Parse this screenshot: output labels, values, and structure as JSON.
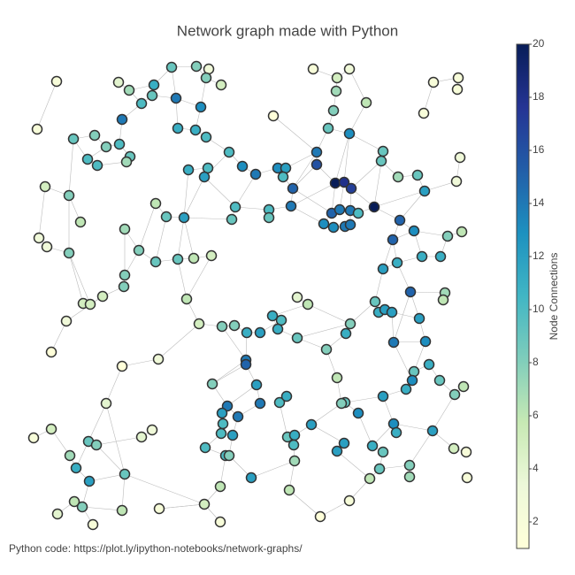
{
  "chart_data": {
    "type": "network",
    "title": "Network graph made with Python",
    "annotation": "Python code:  https://plot.ly/ipython-notebooks/network-graphs/",
    "colorbar_title": "Node Connections",
    "clim": [
      1,
      20
    ],
    "cticks": [
      2,
      4,
      6,
      8,
      10,
      12,
      14,
      16,
      18,
      20
    ],
    "colorscale": [
      "#ffffd9",
      "#edf8d9",
      "#c7e9b4",
      "#7fcdbb",
      "#41b6c4",
      "#1d91c0",
      "#225ea8",
      "#253494",
      "#081d58"
    ],
    "node_line_color": "#333333",
    "edge_color": "#bbbbbb",
    "xlim": [
      0,
      530
    ],
    "ylim": [
      0,
      540
    ],
    "x": [
      44,
      22,
      114,
      126,
      154,
      174,
      202,
      216,
      213,
      230,
      152,
      140,
      179,
      207,
      118,
      63,
      87,
      115,
      100,
      127,
      79,
      90,
      123,
      181,
      201,
      213,
      193,
      215,
      211,
      239,
      254,
      269,
      294,
      303,
      300,
      246,
      242,
      284,
      284,
      311,
      309,
      31,
      58,
      71,
      24,
      33,
      58,
      156,
      168,
      188,
      121,
      137,
      156,
      181,
      199,
      219,
      121,
      120,
      96,
      74,
      82,
      55,
      191,
      38,
      118,
      159,
      334,
      375,
      361,
      360,
      394,
      357,
      289,
      351,
      375,
      338,
      338,
      359,
      369,
      377,
      403,
      355,
      364,
      376,
      385,
      346,
      357,
      370,
      376,
      413,
      411,
      430,
      452,
      460,
      432,
      424,
      448,
      470,
      498,
      497,
      459,
      500,
      496,
      486,
      502,
      413,
      429,
      457,
      478,
      444,
      483,
      481,
      404,
      408,
      415,
      423,
      454,
      425,
      461,
      316,
      328,
      288,
      298,
      294,
      274,
      231,
      245,
      259,
      205,
      316,
      376,
      371,
      349,
      258,
      258,
      361,
      220,
      270,
      448,
      465,
      446,
      477,
      504,
      494,
      439,
      413,
      370,
      366,
      385,
      425,
      428,
      469,
      237,
      231,
      249,
      274,
      296,
      304,
      232,
      230,
      243,
      332,
      305,
      313,
      312,
      313,
      369,
      361,
      401,
      413,
      443,
      409,
      493,
      507,
      508,
      398,
      443,
      212,
      235,
      239,
      264,
      229,
      307,
      211,
      229,
      342,
      375,
      160,
      100,
      18,
      38,
      80,
      89,
      140,
      152,
      59,
      66,
      81,
      121,
      64,
      73,
      45,
      85,
      118
    ],
    "y": [
      508,
      454,
      507,
      498,
      504,
      524,
      525,
      522,
      512,
      504,
      492,
      483,
      489,
      479,
      465,
      443,
      447,
      437,
      434,
      423,
      420,
      413,
      417,
      455,
      453,
      445,
      408,
      410,
      400,
      428,
      412,
      403,
      410,
      410,
      400,
      366,
      352,
      363,
      354,
      387,
      367,
      389,
      379,
      349,
      331,
      321,
      314,
      370,
      355,
      354,
      341,
      317,
      304,
      307,
      308,
      311,
      289,
      276,
      265,
      257,
      256,
      237,
      262,
      202,
      186,
      194,
      522,
      522,
      512,
      497,
      484,
      475,
      469,
      455,
      449,
      428,
      414,
      393,
      394,
      387,
      366,
      359,
      363,
      362,
      359,
      347,
      343,
      344,
      346,
      429,
      418,
      400,
      402,
      384,
      351,
      329,
      339,
      507,
      512,
      499,
      472,
      422,
      395,
      333,
      338,
      296,
      303,
      310,
      310,
      270,
      269,
      261,
      259,
      247,
      250,
      247,
      240,
      213,
      214,
      264,
      256,
      243,
      238,
      228,
      224,
      231,
      232,
      224,
      234,
      218,
      234,
      223,
      205,
      193,
      188,
      173,
      166,
      165,
      180,
      188,
      170,
      170,
      163,
      154,
      160,
      152,
      145,
      144,
      133,
      121,
      111,
      113,
      141,
      133,
      129,
      144,
      145,
      152,
      121,
      110,
      108,
      120,
      106,
      108,
      97,
      79,
      99,
      90,
      96,
      89,
      74,
      70,
      93,
      89,
      60,
      59,
      61,
      94,
      85,
      85,
      60,
      50,
      46,
      30,
      10,
      16,
      34,
      25,
      144,
      105,
      115,
      101,
      97,
      106,
      114,
      85,
      71,
      56,
      64,
      33,
      27,
      19,
      7,
      23
    ],
    "values": [
      2,
      2,
      4,
      7,
      11,
      9,
      8,
      3,
      8,
      5,
      9,
      10,
      14,
      13,
      14,
      9,
      8,
      10,
      8,
      9,
      10,
      10,
      7,
      11,
      11,
      10,
      11,
      10,
      12,
      10,
      13,
      14,
      13,
      12,
      10,
      10,
      9,
      10,
      9,
      15,
      14,
      5,
      8,
      6,
      3,
      3,
      8,
      6,
      9,
      12,
      7,
      8,
      9,
      9,
      6,
      5,
      8,
      8,
      5,
      5,
      5,
      3,
      6,
      1,
      1,
      3,
      2,
      3,
      5,
      7,
      6,
      8,
      1,
      9,
      13,
      14,
      16,
      20,
      18,
      17,
      20,
      15,
      14,
      14,
      10,
      13,
      13,
      14,
      14,
      9,
      9,
      7,
      9,
      12,
      15,
      15,
      13,
      2,
      2,
      2,
      2,
      3,
      3,
      8,
      6,
      12,
      11,
      11,
      11,
      15,
      7,
      6,
      9,
      11,
      12,
      12,
      12,
      14,
      13,
      4,
      6,
      11,
      10,
      11,
      12,
      8,
      8,
      11,
      5,
      9,
      8,
      11,
      8,
      14,
      15,
      6,
      8,
      12,
      9,
      11,
      13,
      9,
      6,
      8,
      11,
      12,
      9,
      8,
      13,
      13,
      11,
      12,
      14,
      12,
      14,
      14,
      10,
      11,
      10,
      10,
      12,
      12,
      9,
      11,
      10,
      7,
      12,
      12,
      11,
      9,
      8,
      9,
      5,
      2,
      2,
      6,
      7,
      10,
      10,
      8,
      12,
      6,
      6,
      5,
      2,
      1,
      2,
      2,
      4,
      2,
      5,
      9,
      8,
      4,
      3,
      7,
      11,
      12,
      9,
      6,
      8,
      4,
      2,
      6
    ],
    "edges": [
      [
        0,
        1
      ],
      [
        2,
        3
      ],
      [
        3,
        4
      ],
      [
        4,
        5
      ],
      [
        5,
        6
      ],
      [
        6,
        7
      ],
      [
        6,
        8
      ],
      [
        8,
        9
      ],
      [
        5,
        12
      ],
      [
        4,
        10
      ],
      [
        10,
        11
      ],
      [
        11,
        14
      ],
      [
        12,
        13
      ],
      [
        8,
        13
      ],
      [
        3,
        11
      ],
      [
        13,
        24
      ],
      [
        23,
        24
      ],
      [
        24,
        25
      ],
      [
        12,
        23
      ],
      [
        14,
        17
      ],
      [
        15,
        16
      ],
      [
        16,
        18
      ],
      [
        17,
        18
      ],
      [
        17,
        19
      ],
      [
        18,
        20
      ],
      [
        20,
        21
      ],
      [
        19,
        22
      ],
      [
        21,
        22
      ],
      [
        15,
        20
      ],
      [
        15,
        42
      ],
      [
        41,
        42
      ],
      [
        42,
        43
      ],
      [
        41,
        44
      ],
      [
        44,
        45
      ],
      [
        45,
        46
      ],
      [
        42,
        46
      ],
      [
        46,
        59
      ],
      [
        46,
        60
      ],
      [
        59,
        60
      ],
      [
        60,
        58
      ],
      [
        58,
        57
      ],
      [
        57,
        56
      ],
      [
        56,
        50
      ],
      [
        50,
        51
      ],
      [
        51,
        52
      ],
      [
        52,
        53
      ],
      [
        53,
        54
      ],
      [
        54,
        55
      ],
      [
        48,
        49
      ],
      [
        47,
        48
      ],
      [
        48,
        52
      ],
      [
        49,
        53
      ],
      [
        47,
        51
      ],
      [
        49,
        54
      ],
      [
        53,
        62
      ],
      [
        61,
        58
      ],
      [
        26,
        27
      ],
      [
        27,
        28
      ],
      [
        28,
        29
      ],
      [
        29,
        30
      ],
      [
        30,
        31
      ],
      [
        31,
        32
      ],
      [
        32,
        33
      ],
      [
        33,
        34
      ],
      [
        34,
        39
      ],
      [
        39,
        40
      ],
      [
        31,
        35
      ],
      [
        35,
        36
      ],
      [
        37,
        38
      ],
      [
        35,
        37
      ],
      [
        28,
        49
      ],
      [
        26,
        49
      ],
      [
        36,
        49
      ],
      [
        25,
        29
      ],
      [
        28,
        35
      ],
      [
        40,
        37
      ],
      [
        62,
        128
      ],
      [
        63,
        61
      ],
      [
        64,
        65
      ],
      [
        64,
        188
      ],
      [
        65,
        128
      ],
      [
        66,
        68
      ],
      [
        67,
        68
      ],
      [
        68,
        69
      ],
      [
        67,
        70
      ],
      [
        69,
        71
      ],
      [
        71,
        73
      ],
      [
        70,
        74
      ],
      [
        73,
        75
      ],
      [
        73,
        74
      ],
      [
        74,
        77
      ],
      [
        74,
        78
      ],
      [
        75,
        76
      ],
      [
        76,
        77
      ],
      [
        77,
        78
      ],
      [
        78,
        79
      ],
      [
        77,
        81
      ],
      [
        78,
        82
      ],
      [
        79,
        83
      ],
      [
        81,
        82
      ],
      [
        82,
        83
      ],
      [
        83,
        84
      ],
      [
        81,
        85
      ],
      [
        85,
        86
      ],
      [
        86,
        87
      ],
      [
        87,
        88
      ],
      [
        83,
        88
      ],
      [
        80,
        84
      ],
      [
        80,
        79
      ],
      [
        80,
        94
      ],
      [
        80,
        93
      ],
      [
        77,
        40
      ],
      [
        76,
        39
      ],
      [
        75,
        39
      ],
      [
        72,
        75
      ],
      [
        33,
        75
      ],
      [
        40,
        85
      ],
      [
        39,
        81
      ],
      [
        74,
        89
      ],
      [
        89,
        90
      ],
      [
        90,
        91
      ],
      [
        91,
        92
      ],
      [
        92,
        93
      ],
      [
        90,
        79
      ],
      [
        89,
        80
      ],
      [
        93,
        94
      ],
      [
        94,
        95
      ],
      [
        94,
        96
      ],
      [
        95,
        96
      ],
      [
        96,
        103
      ],
      [
        103,
        104
      ],
      [
        93,
        102
      ],
      [
        101,
        102
      ],
      [
        97,
        98
      ],
      [
        98,
        99
      ],
      [
        97,
        100
      ],
      [
        95,
        105
      ],
      [
        95,
        106
      ],
      [
        105,
        106
      ],
      [
        106,
        107
      ],
      [
        107,
        108
      ],
      [
        107,
        96
      ],
      [
        108,
        103
      ],
      [
        109,
        106
      ],
      [
        109,
        110
      ],
      [
        110,
        111
      ],
      [
        105,
        112
      ],
      [
        112,
        113
      ],
      [
        113,
        114
      ],
      [
        114,
        115
      ],
      [
        115,
        116
      ],
      [
        109,
        116
      ],
      [
        115,
        117
      ],
      [
        116,
        118
      ],
      [
        117,
        118
      ],
      [
        109,
        117
      ],
      [
        112,
        130
      ],
      [
        130,
        131
      ],
      [
        119,
        120
      ],
      [
        120,
        121
      ],
      [
        121,
        122
      ],
      [
        121,
        123
      ],
      [
        122,
        124
      ],
      [
        124,
        127
      ],
      [
        125,
        126
      ],
      [
        126,
        127
      ],
      [
        125,
        128
      ],
      [
        123,
        129
      ],
      [
        129,
        132
      ],
      [
        131,
        132
      ],
      [
        127,
        133
      ],
      [
        133,
        134
      ],
      [
        134,
        136
      ],
      [
        134,
        137
      ],
      [
        133,
        125
      ],
      [
        132,
        135
      ],
      [
        135,
        147
      ],
      [
        146,
        147
      ],
      [
        146,
        148
      ],
      [
        147,
        161
      ],
      [
        145,
        146
      ],
      [
        145,
        144
      ],
      [
        144,
        140
      ],
      [
        138,
        140
      ],
      [
        138,
        139
      ],
      [
        139,
        141
      ],
      [
        141,
        143
      ],
      [
        142,
        143
      ],
      [
        118,
        138
      ],
      [
        117,
        140
      ],
      [
        145,
        149
      ],
      [
        149,
        150
      ],
      [
        149,
        151
      ],
      [
        143,
        151
      ],
      [
        148,
        168
      ],
      [
        168,
        169
      ],
      [
        149,
        168
      ],
      [
        169,
        171
      ],
      [
        170,
        171
      ],
      [
        151,
        170
      ],
      [
        171,
        175
      ],
      [
        175,
        186
      ],
      [
        170,
        176
      ],
      [
        172,
        173
      ],
      [
        172,
        151
      ],
      [
        166,
        167
      ],
      [
        161,
        166
      ],
      [
        161,
        163
      ],
      [
        162,
        163
      ],
      [
        162,
        164
      ],
      [
        164,
        165
      ],
      [
        157,
        156
      ],
      [
        156,
        162
      ],
      [
        137,
        155
      ],
      [
        155,
        154
      ],
      [
        152,
        153
      ],
      [
        152,
        154
      ],
      [
        153,
        158
      ],
      [
        158,
        159
      ],
      [
        159,
        160
      ],
      [
        154,
        160
      ],
      [
        152,
        137
      ],
      [
        136,
        152
      ],
      [
        133,
        136
      ],
      [
        159,
        177
      ],
      [
        177,
        178
      ],
      [
        178,
        179
      ],
      [
        179,
        160
      ],
      [
        179,
        180
      ],
      [
        180,
        165
      ],
      [
        178,
        181
      ],
      [
        181,
        183
      ],
      [
        183,
        184
      ],
      [
        183,
        187
      ],
      [
        165,
        182
      ],
      [
        167,
        175
      ],
      [
        182,
        185
      ],
      [
        185,
        186
      ],
      [
        188,
        191
      ],
      [
        189,
        190
      ],
      [
        190,
        195
      ],
      [
        191,
        192
      ],
      [
        191,
        196
      ],
      [
        192,
        198
      ],
      [
        193,
        194
      ],
      [
        192,
        193
      ],
      [
        195,
        196
      ],
      [
        196,
        197
      ],
      [
        197,
        200
      ],
      [
        199,
        200
      ],
      [
        199,
        201
      ],
      [
        200,
        202
      ],
      [
        200,
        203
      ],
      [
        198,
        203
      ],
      [
        197,
        198
      ],
      [
        198,
        183
      ],
      [
        187,
        183
      ],
      [
        188,
        198
      ],
      [
        10,
        12
      ],
      [
        55,
        62
      ],
      [
        56,
        51
      ],
      [
        120,
        130
      ],
      [
        129,
        130
      ]
    ]
  }
}
